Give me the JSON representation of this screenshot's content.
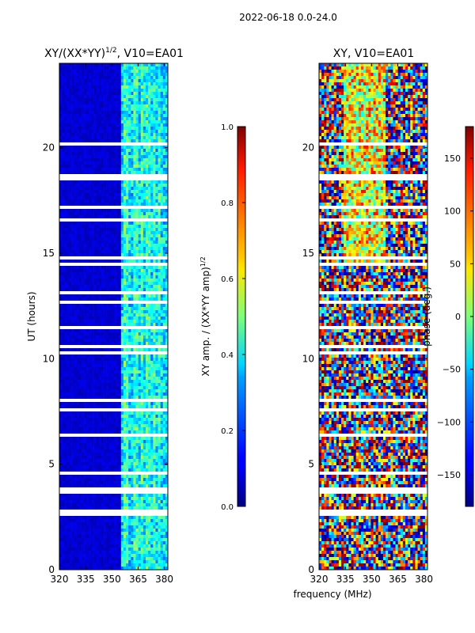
{
  "suptitle": "2022-06-18 0.0-24.0",
  "chart_data": [
    {
      "type": "heatmap",
      "title": "XY/(XX*YY)$^{1/2}$, V10=EA01",
      "title_main": "XY/(XX*YY)",
      "title_sup": "1/2",
      "title_tail": ", V10=EA01",
      "xlabel": "",
      "ylabel": "UT (hours)",
      "xlim": [
        320,
        382
      ],
      "ylim": [
        0,
        24
      ],
      "xticks": [
        "320",
        "335",
        "350",
        "365",
        "380"
      ],
      "yticks": [
        "0",
        "5",
        "10",
        "15",
        "20"
      ],
      "colorbar": {
        "label": "XY amp. / (XX*YY amp)$^{1/2}$",
        "label_main": "XY amp. / (XX*YY amp)",
        "label_sup": "1/2",
        "range": [
          0.0,
          1.0
        ],
        "ticks": [
          "0.0",
          "0.2",
          "0.4",
          "0.6",
          "0.8",
          "1.0"
        ],
        "colormap": "jet"
      },
      "description_values": {
        "low_freq_band_value": 0.08,
        "high_freq_band_value": 0.35
      }
    },
    {
      "type": "heatmap",
      "title": "XY, V10=EA01",
      "xlabel": "frequency (MHz)",
      "ylabel": "",
      "xlim": [
        320,
        382
      ],
      "ylim": [
        0,
        24
      ],
      "xticks": [
        "320",
        "335",
        "350",
        "365",
        "380"
      ],
      "yticks": [
        "0",
        "5",
        "10",
        "15",
        "20"
      ],
      "colorbar": {
        "label": "phase (deg.)",
        "range": [
          -180,
          180
        ],
        "ticks": [
          "−150",
          "−100",
          "−50",
          "0",
          "50",
          "100",
          "150"
        ],
        "tick_values": [
          -150,
          -100,
          -50,
          0,
          50,
          100,
          150
        ],
        "colormap": "jet"
      }
    }
  ]
}
